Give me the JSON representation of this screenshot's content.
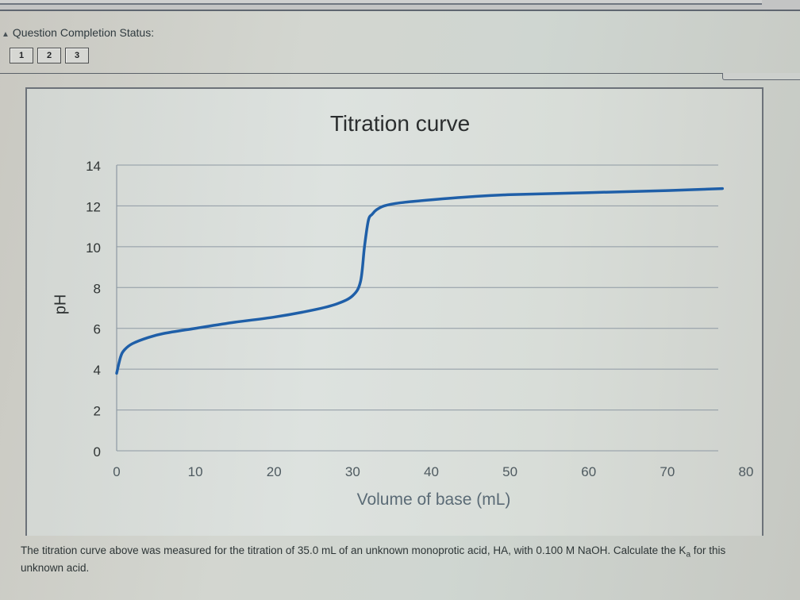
{
  "header": {
    "status_label": "Question Completion Status:",
    "status_arrow_icon": "▲",
    "question_buttons": [
      "1",
      "2",
      "3"
    ]
  },
  "chart_data": {
    "type": "line",
    "title": "Titration curve",
    "xlabel": "Volume of base (mL)",
    "ylabel": "pH",
    "xlim": [
      0,
      80
    ],
    "ylim": [
      0,
      14
    ],
    "x_ticks": [
      "0",
      "10",
      "20",
      "30",
      "40",
      "50",
      "60",
      "70",
      "80"
    ],
    "y_ticks": [
      "0",
      "2",
      "4",
      "6",
      "8",
      "10",
      "12",
      "14"
    ],
    "grid": "horizontal",
    "legend": "none",
    "line_color": "#1f5fa8",
    "series": [
      {
        "name": "pH",
        "x": [
          0,
          0.5,
          1,
          2,
          4,
          6,
          10,
          15,
          20,
          25,
          28,
          30,
          31,
          31.5,
          32,
          32.5,
          33,
          34,
          36,
          40,
          45,
          50,
          60,
          70,
          77
        ],
        "values": [
          3.8,
          4.6,
          4.95,
          5.25,
          5.55,
          5.75,
          6.0,
          6.3,
          6.55,
          6.9,
          7.2,
          7.6,
          8.3,
          10.0,
          11.3,
          11.6,
          11.8,
          12.0,
          12.15,
          12.3,
          12.45,
          12.55,
          12.65,
          12.75,
          12.85
        ]
      }
    ]
  },
  "problem": {
    "text_before_sub": "The titration curve above was measured for the titration of 35.0 mL of an unknown monoprotic acid, HA, with 0.100 M NaOH. Calculate the K",
    "subscript": "a",
    "text_after_sub": " for this unknown acid."
  }
}
